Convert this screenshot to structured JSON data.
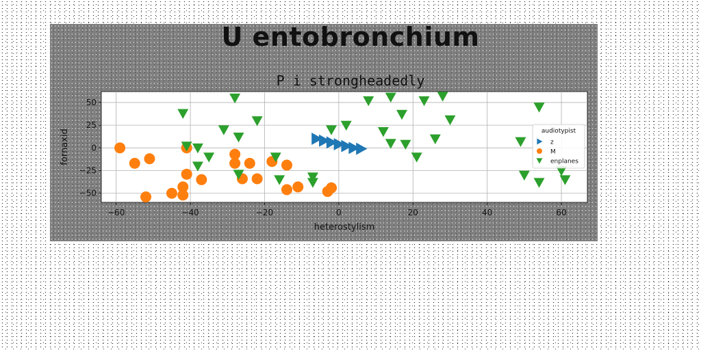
{
  "suptitle": "U entobronchium",
  "chart_data": {
    "type": "scatter",
    "title": "P i strongheadedly",
    "xlabel": "heterostylism",
    "ylabel": "fornaxid",
    "xlim": [
      -64,
      67
    ],
    "ylim": [
      -60,
      62
    ],
    "xticks": [
      -60,
      -40,
      -20,
      0,
      20,
      40,
      60
    ],
    "yticks": [
      -50,
      -25,
      0,
      25,
      50
    ],
    "xtick_labels": [
      "−60",
      "−40",
      "−20",
      "0",
      "20",
      "40",
      "60"
    ],
    "ytick_labels": [
      "−50",
      "−25",
      "0",
      "25",
      "50"
    ],
    "grid": true,
    "legend": {
      "title": "audiotypist",
      "position": "right"
    },
    "colors": {
      "z": "#1f77b4",
      "M": "#ff7f0e",
      "enplanes": "#2ca02c"
    },
    "series": [
      {
        "name": "z",
        "marker": "triangle-right",
        "points": [
          [
            -6,
            10
          ],
          [
            -4,
            8
          ],
          [
            -2,
            6
          ],
          [
            0,
            4
          ],
          [
            2,
            2
          ],
          [
            4,
            0
          ],
          [
            6,
            -1
          ]
        ]
      },
      {
        "name": "M",
        "marker": "circle",
        "points": [
          [
            -59,
            0
          ],
          [
            -55,
            -17
          ],
          [
            -51,
            -12
          ],
          [
            -52,
            -54
          ],
          [
            -45,
            -50
          ],
          [
            -42,
            -52
          ],
          [
            -42,
            -43
          ],
          [
            -41,
            -29
          ],
          [
            -41,
            0
          ],
          [
            -37,
            -35
          ],
          [
            -28,
            -7
          ],
          [
            -28,
            -17
          ],
          [
            -26,
            -34
          ],
          [
            -24,
            -17
          ],
          [
            -22,
            -34
          ],
          [
            -18,
            -15
          ],
          [
            -14,
            -19
          ],
          [
            -14,
            -46
          ],
          [
            -11,
            -43
          ],
          [
            -3,
            -48
          ],
          [
            -2,
            -44
          ]
        ]
      },
      {
        "name": "enplanes",
        "marker": "triangle-down",
        "points": [
          [
            -42,
            38
          ],
          [
            -41,
            2
          ],
          [
            -38,
            0
          ],
          [
            -38,
            -20
          ],
          [
            -35,
            -10
          ],
          [
            -31,
            20
          ],
          [
            -28,
            55
          ],
          [
            -27,
            12
          ],
          [
            -27,
            -29
          ],
          [
            -22,
            30
          ],
          [
            -17,
            -10
          ],
          [
            -16,
            -35
          ],
          [
            -7,
            -32
          ],
          [
            -7,
            -38
          ],
          [
            -2,
            20
          ],
          [
            2,
            25
          ],
          [
            8,
            52
          ],
          [
            12,
            18
          ],
          [
            14,
            56
          ],
          [
            14,
            5
          ],
          [
            17,
            37
          ],
          [
            18,
            4
          ],
          [
            21,
            -10
          ],
          [
            23,
            52
          ],
          [
            26,
            10
          ],
          [
            28,
            57
          ],
          [
            30,
            31
          ],
          [
            49,
            7
          ],
          [
            50,
            -30
          ],
          [
            54,
            45
          ],
          [
            54,
            -38
          ],
          [
            60,
            -25
          ],
          [
            61,
            -35
          ]
        ]
      }
    ]
  }
}
